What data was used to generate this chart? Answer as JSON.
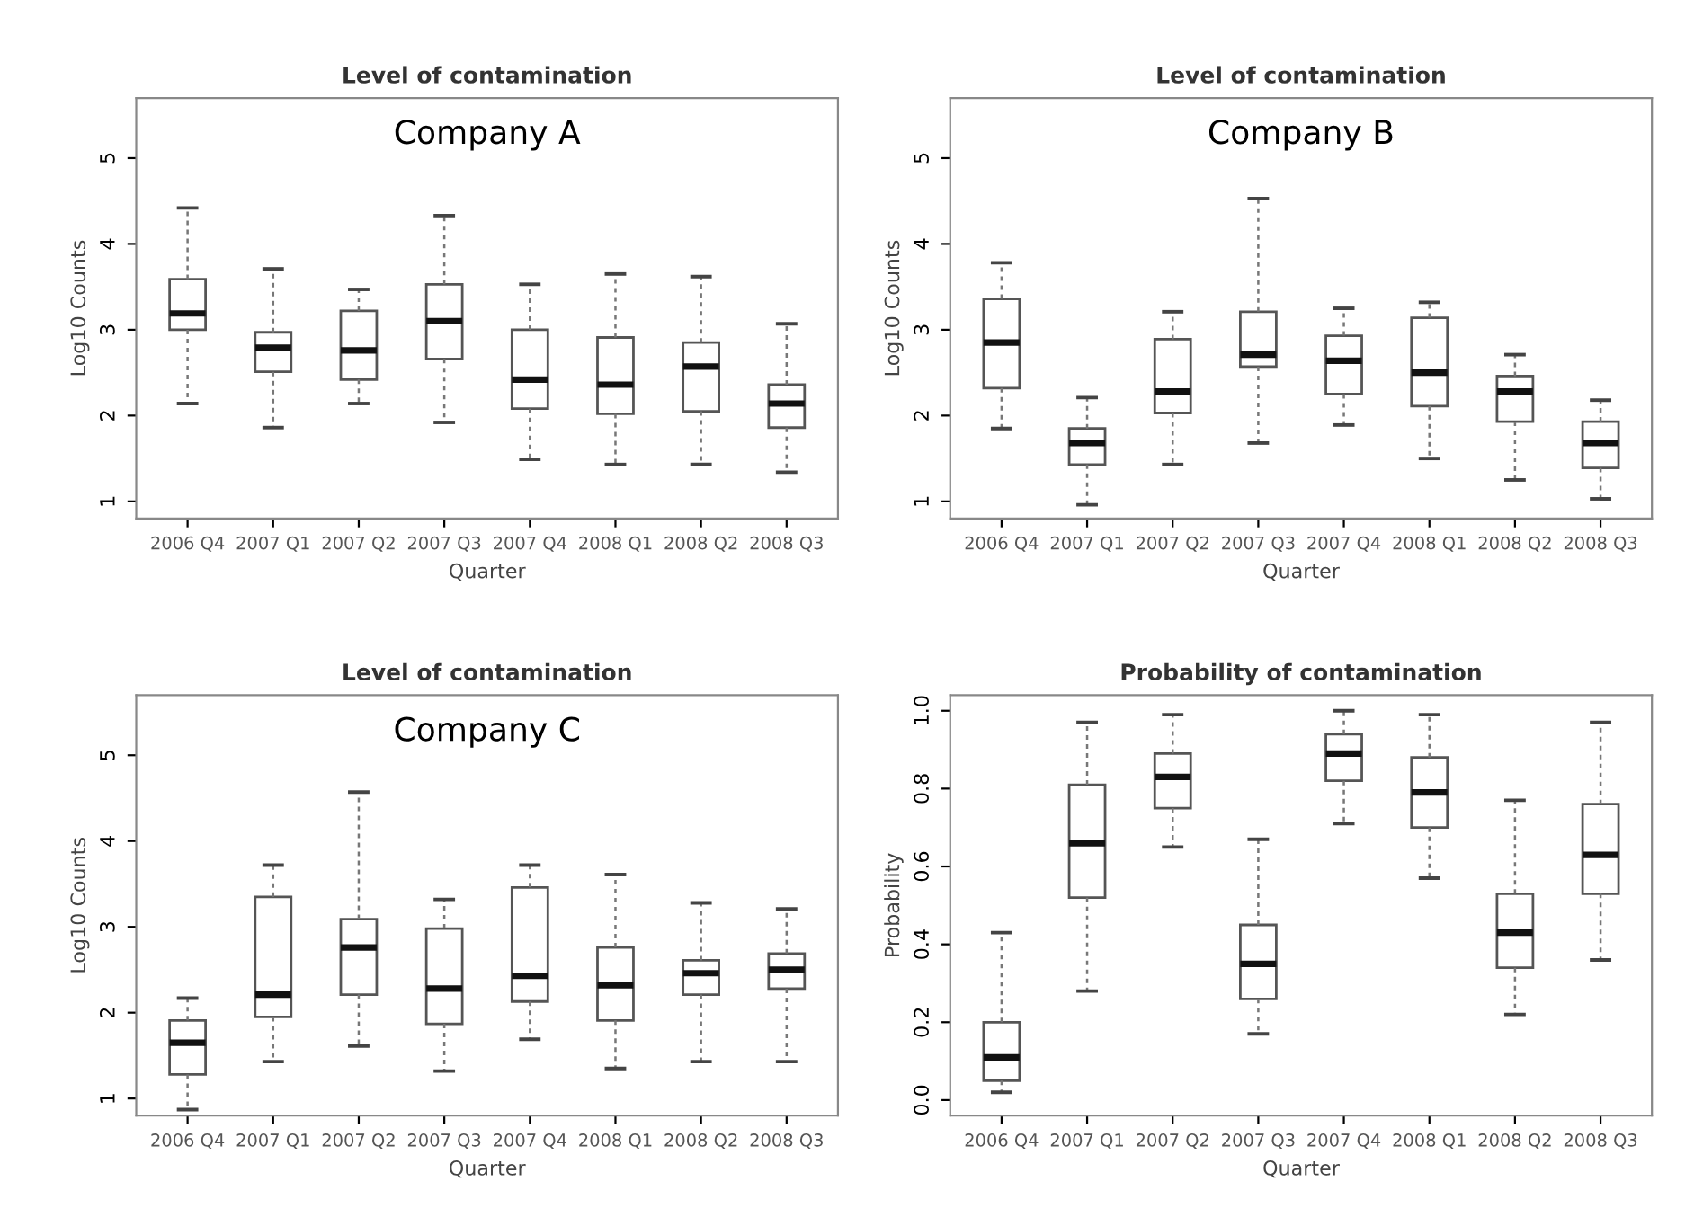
{
  "chart_data": [
    {
      "type": "box",
      "title": "Level of contamination",
      "xlabel": "Quarter",
      "ylabel": "Log10 Counts",
      "annotations": [
        "Company A"
      ],
      "categories": [
        "2006 Q4",
        "2007 Q1",
        "2007 Q2",
        "2007 Q3",
        "2007 Q4",
        "2008 Q1",
        "2008 Q2",
        "2008 Q3"
      ],
      "ylim": [
        0.8,
        5.7
      ],
      "yticks": [
        1,
        2,
        3,
        4,
        5
      ],
      "boxes": [
        {
          "low": 2.14,
          "q1": 3.0,
          "median": 3.19,
          "q3": 3.59,
          "high": 4.42
        },
        {
          "low": 1.86,
          "q1": 2.51,
          "median": 2.79,
          "q3": 2.97,
          "high": 3.71
        },
        {
          "low": 2.14,
          "q1": 2.42,
          "median": 2.76,
          "q3": 3.22,
          "high": 3.47
        },
        {
          "low": 1.92,
          "q1": 2.66,
          "median": 3.1,
          "q3": 3.53,
          "high": 4.33
        },
        {
          "low": 1.49,
          "q1": 2.08,
          "median": 2.42,
          "q3": 3.0,
          "high": 3.53
        },
        {
          "low": 1.43,
          "q1": 2.02,
          "median": 2.36,
          "q3": 2.91,
          "high": 3.65
        },
        {
          "low": 1.43,
          "q1": 2.05,
          "median": 2.57,
          "q3": 2.85,
          "high": 3.62
        },
        {
          "low": 1.34,
          "q1": 1.86,
          "median": 2.14,
          "q3": 2.36,
          "high": 3.07
        }
      ]
    },
    {
      "type": "box",
      "title": "Level of contamination",
      "xlabel": "Quarter",
      "ylabel": "Log10 Counts",
      "annotations": [
        "Company B"
      ],
      "categories": [
        "2006 Q4",
        "2007 Q1",
        "2007 Q2",
        "2007 Q3",
        "2007 Q4",
        "2008 Q1",
        "2008 Q2",
        "2008 Q3"
      ],
      "ylim": [
        0.8,
        5.7
      ],
      "yticks": [
        1,
        2,
        3,
        4,
        5
      ],
      "boxes": [
        {
          "low": 1.85,
          "q1": 2.32,
          "median": 2.85,
          "q3": 3.36,
          "high": 3.78
        },
        {
          "low": 0.96,
          "q1": 1.43,
          "median": 1.68,
          "q3": 1.85,
          "high": 2.21
        },
        {
          "low": 1.43,
          "q1": 2.03,
          "median": 2.28,
          "q3": 2.89,
          "high": 3.21
        },
        {
          "low": 1.68,
          "q1": 2.57,
          "median": 2.71,
          "q3": 3.21,
          "high": 4.53
        },
        {
          "low": 1.89,
          "q1": 2.25,
          "median": 2.64,
          "q3": 2.93,
          "high": 3.25
        },
        {
          "low": 1.5,
          "q1": 2.11,
          "median": 2.5,
          "q3": 3.14,
          "high": 3.32
        },
        {
          "low": 1.25,
          "q1": 1.93,
          "median": 2.28,
          "q3": 2.46,
          "high": 2.71
        },
        {
          "low": 1.03,
          "q1": 1.39,
          "median": 1.68,
          "q3": 1.93,
          "high": 2.18
        }
      ]
    },
    {
      "type": "box",
      "title": "Level of contamination",
      "xlabel": "Quarter",
      "ylabel": "Log10 Counts",
      "annotations": [
        "Company C"
      ],
      "categories": [
        "2006 Q4",
        "2007 Q1",
        "2007 Q2",
        "2007 Q3",
        "2007 Q4",
        "2008 Q1",
        "2008 Q2",
        "2008 Q3"
      ],
      "ylim": [
        0.8,
        5.7
      ],
      "yticks": [
        1,
        2,
        3,
        4,
        5
      ],
      "boxes": [
        {
          "low": 0.87,
          "q1": 1.28,
          "median": 1.65,
          "q3": 1.91,
          "high": 2.17
        },
        {
          "low": 1.43,
          "q1": 1.95,
          "median": 2.21,
          "q3": 3.35,
          "high": 3.72
        },
        {
          "low": 1.61,
          "q1": 2.21,
          "median": 2.76,
          "q3": 3.09,
          "high": 4.57
        },
        {
          "low": 1.32,
          "q1": 1.87,
          "median": 2.28,
          "q3": 2.98,
          "high": 3.32
        },
        {
          "low": 1.69,
          "q1": 2.13,
          "median": 2.43,
          "q3": 3.46,
          "high": 3.72
        },
        {
          "low": 1.35,
          "q1": 1.91,
          "median": 2.32,
          "q3": 2.76,
          "high": 3.61
        },
        {
          "low": 1.43,
          "q1": 2.21,
          "median": 2.46,
          "q3": 2.61,
          "high": 3.28
        },
        {
          "low": 1.43,
          "q1": 2.28,
          "median": 2.5,
          "q3": 2.69,
          "high": 3.21
        }
      ]
    },
    {
      "type": "box",
      "title": "Probability of contamination",
      "xlabel": "Quarter",
      "ylabel": "Probability",
      "categories": [
        "2006 Q4",
        "2007 Q1",
        "2007 Q2",
        "2007 Q3",
        "2007 Q4",
        "2008 Q1",
        "2008 Q2",
        "2008 Q3"
      ],
      "ylim": [
        -0.04,
        1.04
      ],
      "yticks": [
        {
          "value": 0,
          "label": "0.0"
        },
        {
          "value": 0.2,
          "label": "0.2"
        },
        {
          "value": 0.4,
          "label": "0.4"
        },
        {
          "value": 0.6,
          "label": "0.6"
        },
        {
          "value": 0.8,
          "label": "0.8"
        },
        {
          "value": 1,
          "label": "1.0"
        }
      ],
      "boxes": [
        {
          "low": 0.02,
          "q1": 0.05,
          "median": 0.11,
          "q3": 0.2,
          "high": 0.43
        },
        {
          "low": 0.28,
          "q1": 0.52,
          "median": 0.66,
          "q3": 0.81,
          "high": 0.97
        },
        {
          "low": 0.65,
          "q1": 0.75,
          "median": 0.83,
          "q3": 0.89,
          "high": 0.99
        },
        {
          "low": 0.17,
          "q1": 0.26,
          "median": 0.35,
          "q3": 0.45,
          "high": 0.67
        },
        {
          "low": 0.71,
          "q1": 0.82,
          "median": 0.89,
          "q3": 0.94,
          "high": 1.0
        },
        {
          "low": 0.57,
          "q1": 0.7,
          "median": 0.79,
          "q3": 0.88,
          "high": 0.99
        },
        {
          "low": 0.22,
          "q1": 0.34,
          "median": 0.43,
          "q3": 0.53,
          "high": 0.77
        },
        {
          "low": 0.36,
          "q1": 0.53,
          "median": 0.63,
          "q3": 0.76,
          "high": 0.97
        }
      ]
    }
  ]
}
